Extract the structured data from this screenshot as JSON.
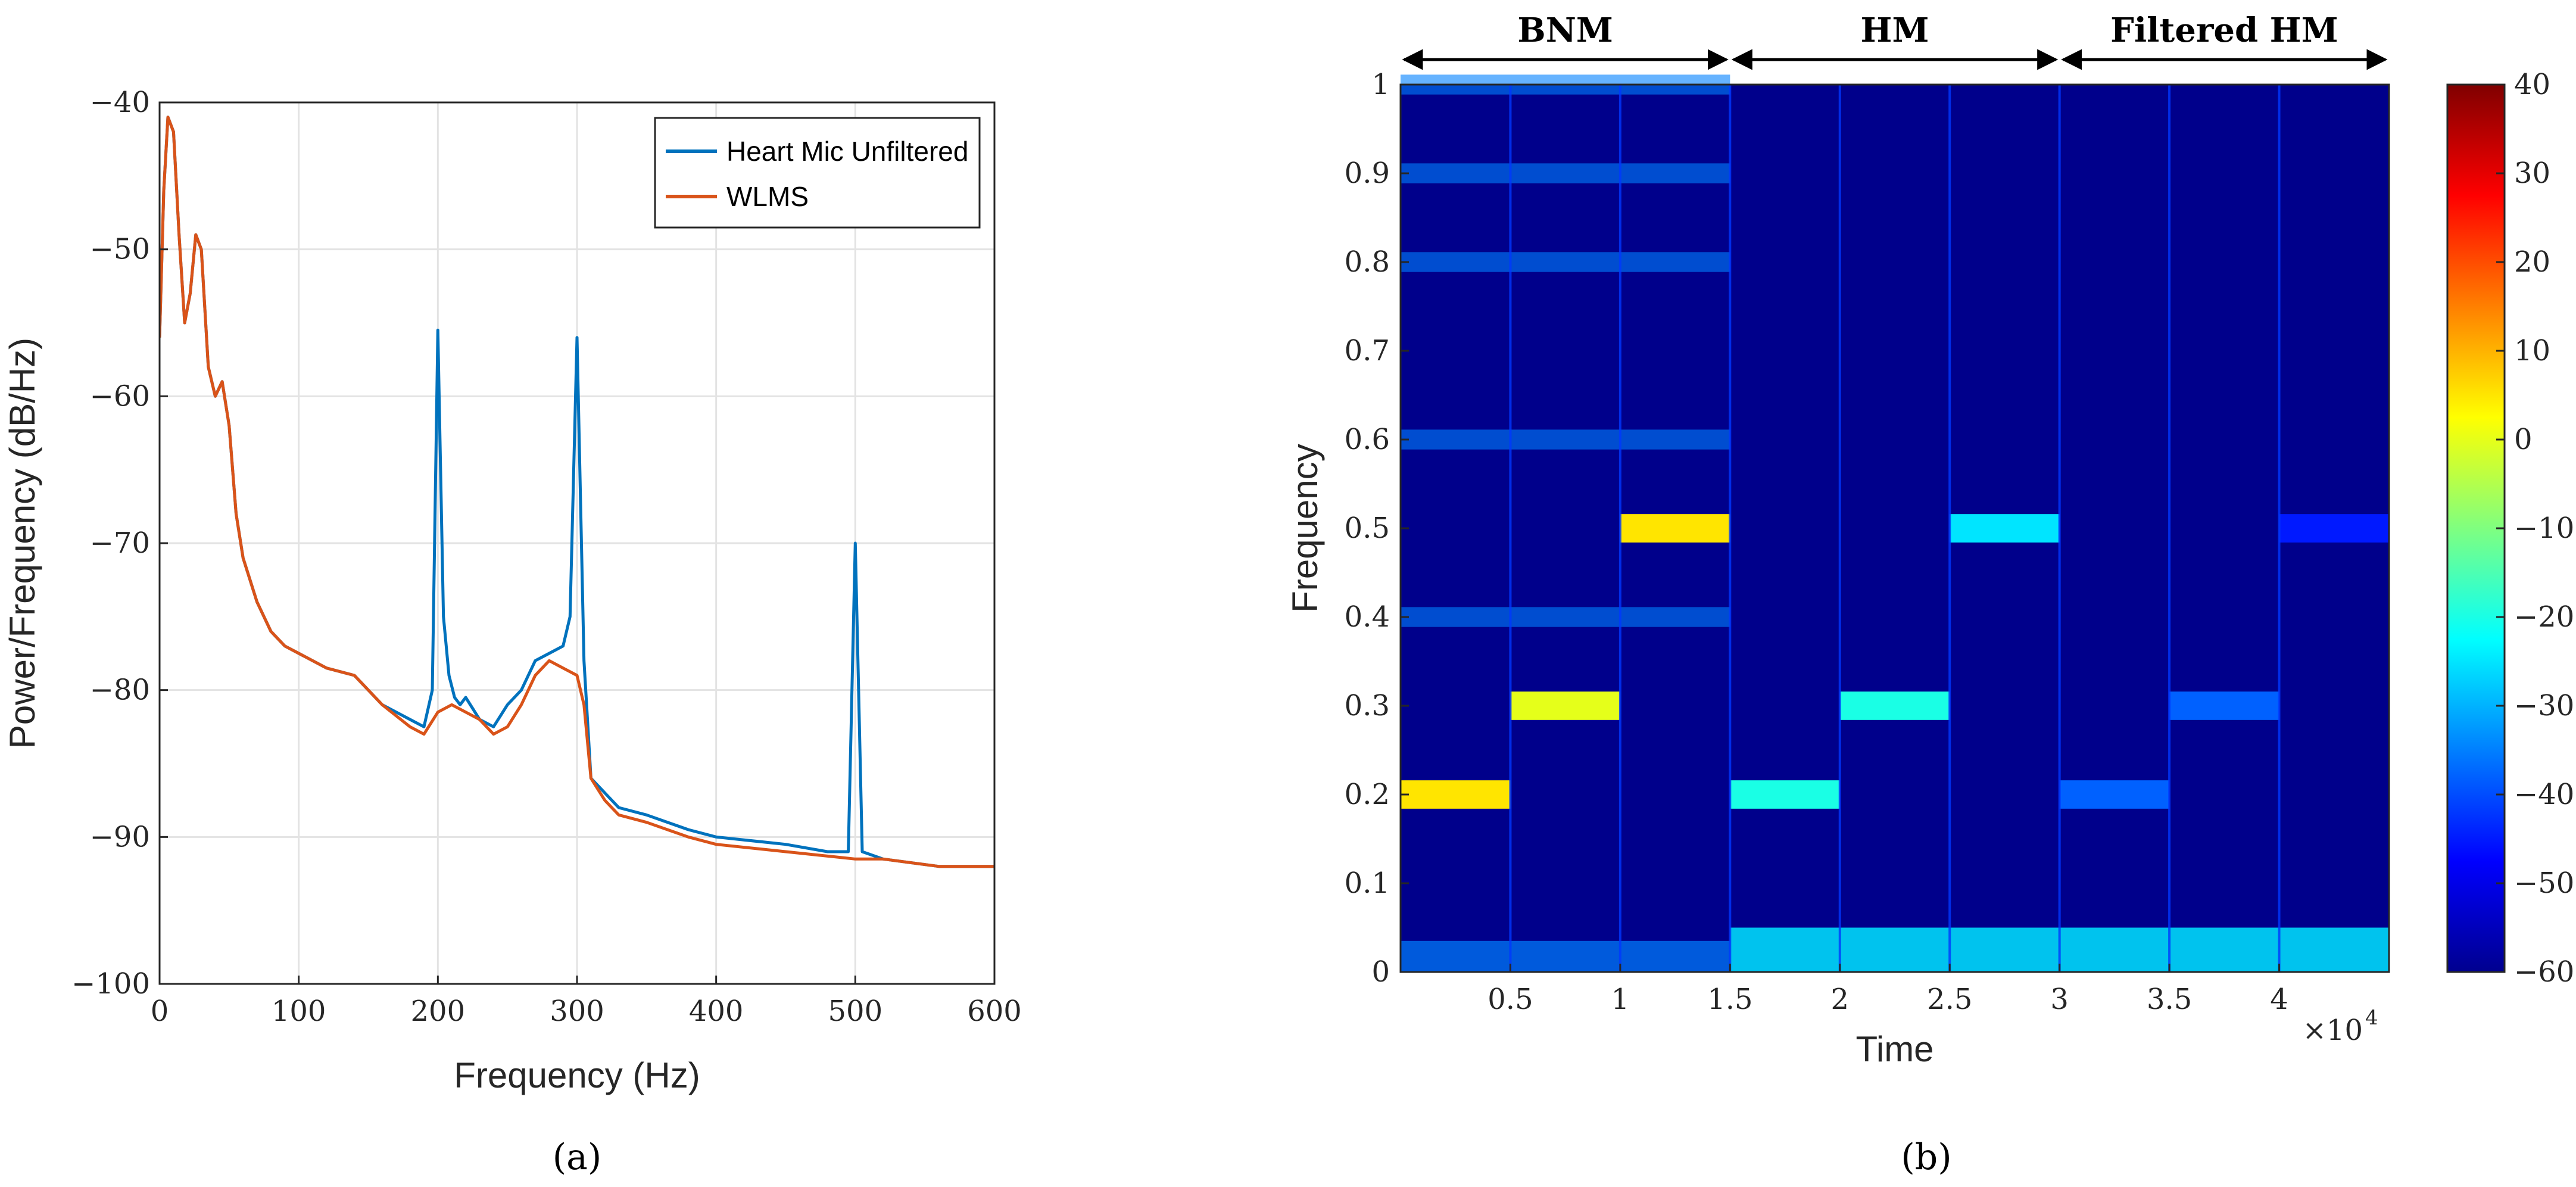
{
  "chart_data": [
    {
      "type": "line",
      "caption": "(a)",
      "xlabel": "Frequency (Hz)",
      "ylabel": "Power/Frequency (dB/Hz)",
      "xlim": [
        0,
        600
      ],
      "ylim": [
        -100,
        -40
      ],
      "xticks": [
        0,
        100,
        200,
        300,
        400,
        500,
        600
      ],
      "yticks": [
        -100,
        -90,
        -80,
        -70,
        -60,
        -50,
        -40
      ],
      "xtick_labels": [
        "0",
        "100",
        "200",
        "300",
        "400",
        "500",
        "600"
      ],
      "ytick_labels": [
        "−100",
        "−90",
        "−80",
        "−70",
        "−60",
        "−50",
        "−40"
      ],
      "grid": true,
      "legend_position": "top-right",
      "series": [
        {
          "name": "Heart Mic Unfiltered",
          "color": "#0072BD",
          "x": [
            0,
            3,
            6,
            10,
            14,
            18,
            22,
            26,
            30,
            35,
            40,
            45,
            50,
            55,
            60,
            70,
            80,
            90,
            100,
            120,
            140,
            160,
            180,
            190,
            196,
            200,
            204,
            208,
            212,
            216,
            220,
            230,
            240,
            250,
            260,
            270,
            280,
            290,
            295,
            300,
            305,
            310,
            320,
            330,
            350,
            380,
            400,
            450,
            480,
            495,
            500,
            505,
            520,
            560,
            600
          ],
          "y": [
            -56,
            -46,
            -41,
            -42,
            -49,
            -55,
            -53,
            -49,
            -50,
            -58,
            -60,
            -59,
            -62,
            -68,
            -71,
            -74,
            -76,
            -77,
            -77.5,
            -78.5,
            -79,
            -81,
            -82,
            -82.5,
            -80,
            -55.5,
            -75,
            -79,
            -80.5,
            -81,
            -80.5,
            -82,
            -82.5,
            -81,
            -80,
            -78,
            -77.5,
            -77,
            -75,
            -56,
            -78,
            -86,
            -87,
            -88,
            -88.5,
            -89.5,
            -90,
            -90.5,
            -91,
            -91,
            -70,
            -91,
            -91.5,
            -92,
            -92
          ]
        },
        {
          "name": "WLMS",
          "color": "#D95319",
          "x": [
            0,
            3,
            6,
            10,
            14,
            18,
            22,
            26,
            30,
            35,
            40,
            45,
            50,
            55,
            60,
            70,
            80,
            90,
            100,
            120,
            140,
            160,
            180,
            190,
            200,
            210,
            220,
            230,
            240,
            250,
            260,
            270,
            280,
            290,
            300,
            305,
            310,
            320,
            330,
            350,
            380,
            400,
            450,
            500,
            520,
            560,
            600
          ],
          "y": [
            -56,
            -46,
            -41,
            -42,
            -49,
            -55,
            -53,
            -49,
            -50,
            -58,
            -60,
            -59,
            -62,
            -68,
            -71,
            -74,
            -76,
            -77,
            -77.5,
            -78.5,
            -79,
            -81,
            -82.5,
            -83,
            -81.5,
            -81,
            -81.5,
            -82,
            -83,
            -82.5,
            -81,
            -79,
            -78,
            -78.5,
            -79,
            -81,
            -86,
            -87.5,
            -88.5,
            -89,
            -90,
            -90.5,
            -91,
            -91.5,
            -91.5,
            -92,
            -92
          ]
        }
      ]
    },
    {
      "type": "heatmap",
      "caption": "(b)",
      "xlabel": "Time",
      "ylabel": "Frequency",
      "x_exponent_base": "×10",
      "x_exponent_power": "4",
      "xlim": [
        0,
        45000
      ],
      "ylim": [
        0,
        1
      ],
      "xticks": [
        5000,
        10000,
        15000,
        20000,
        25000,
        30000,
        35000,
        40000
      ],
      "xtick_labels": [
        "0.5",
        "1",
        "1.5",
        "2",
        "2.5",
        "3",
        "3.5",
        "4"
      ],
      "yticks": [
        0,
        0.1,
        0.2,
        0.3,
        0.4,
        0.5,
        0.6,
        0.7,
        0.8,
        0.9,
        1
      ],
      "ytick_labels": [
        "0",
        "0.1",
        "0.2",
        "0.3",
        "0.4",
        "0.5",
        "0.6",
        "0.7",
        "0.8",
        "0.9",
        "1"
      ],
      "colorbar": {
        "limits": [
          -60,
          40
        ],
        "ticks": [
          -60,
          -50,
          -40,
          -30,
          -20,
          -10,
          0,
          10,
          20,
          30,
          40
        ],
        "tick_labels": [
          "−60",
          "−50",
          "−40",
          "−30",
          "−20",
          "−10",
          "0",
          "10",
          "20",
          "30",
          "40"
        ],
        "colormap": "jet"
      },
      "segments": [
        {
          "label": "BNM",
          "start": 0,
          "end": 15000
        },
        {
          "label": "HM",
          "start": 15000,
          "end": 30000
        },
        {
          "label": "Filtered HM",
          "start": 30000,
          "end": 45000
        }
      ],
      "tones": [
        {
          "t0": 0,
          "t1": 5000,
          "f": 0.2,
          "level": 5
        },
        {
          "t0": 5000,
          "t1": 10000,
          "f": 0.3,
          "level": 0
        },
        {
          "t0": 10000,
          "t1": 15000,
          "f": 0.5,
          "level": 5
        },
        {
          "t0": 15000,
          "t1": 20000,
          "f": 0.2,
          "level": -20
        },
        {
          "t0": 20000,
          "t1": 25000,
          "f": 0.3,
          "level": -20
        },
        {
          "t0": 25000,
          "t1": 30000,
          "f": 0.5,
          "level": -25
        },
        {
          "t0": 30000,
          "t1": 35000,
          "f": 0.2,
          "level": -38
        },
        {
          "t0": 35000,
          "t1": 40000,
          "f": 0.3,
          "level": -38
        },
        {
          "t0": 40000,
          "t1": 45000,
          "f": 0.5,
          "level": -45
        }
      ]
    }
  ]
}
